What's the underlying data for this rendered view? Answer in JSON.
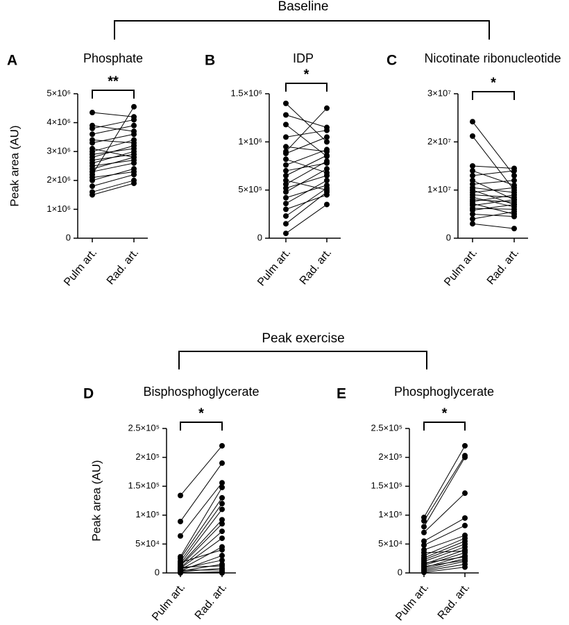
{
  "headers": [
    "Baseline",
    "Peak exercise"
  ],
  "chart_data": [
    {
      "type": "paired",
      "panel": "A",
      "title": "Phosphate",
      "ylabel": "Peak area (AU)",
      "significance": "**",
      "categories": [
        "Pulm art.",
        "Rad. art."
      ],
      "ylim": [
        0,
        5000000.0
      ],
      "yticks": [
        0,
        {
          "value": 1000000.0,
          "label": "1×10⁶"
        },
        {
          "value": 2000000.0,
          "label": "2×10⁶"
        },
        {
          "value": 3000000.0,
          "label": "3×10⁶"
        },
        {
          "value": 4000000.0,
          "label": "4×10⁶"
        },
        {
          "value": 5000000.0,
          "label": "5×10⁶"
        }
      ],
      "pairs": [
        [
          1500000.0,
          1900000.0
        ],
        [
          1600000.0,
          2000000.0
        ],
        [
          1800000.0,
          2200000.0
        ],
        [
          2000000.0,
          2400000.0
        ],
        [
          2100000.0,
          2300000.0
        ],
        [
          2300000.0,
          2600000.0
        ],
        [
          2400000.0,
          2800000.0
        ],
        [
          2500000.0,
          2700000.0
        ],
        [
          2600000.0,
          3000000.0
        ],
        [
          2700000.0,
          2900000.0
        ],
        [
          2800000.0,
          3200000.0
        ],
        [
          2900000.0,
          3100000.0
        ],
        [
          3000000.0,
          3400000.0
        ],
        [
          3100000.0,
          2800000.0
        ],
        [
          3300000.0,
          3600000.0
        ],
        [
          3400000.0,
          3300000.0
        ],
        [
          3600000.0,
          3900000.0
        ],
        [
          3800000.0,
          4100000.0
        ],
        [
          3900000.0,
          3700000.0
        ],
        [
          4350000.0,
          4200000.0
        ],
        [
          2200000.0,
          4550000.0
        ]
      ]
    },
    {
      "type": "paired",
      "panel": "B",
      "title": "IDP",
      "significance": "*",
      "categories": [
        "Pulm art.",
        "Rad. art."
      ],
      "ylim": [
        0,
        1500000.0
      ],
      "yticks": [
        0,
        {
          "value": 500000.0,
          "label": "5×10⁵"
        },
        {
          "value": 1000000.0,
          "label": "1×10⁶"
        },
        {
          "value": 1500000.0,
          "label": "1.5×10⁶"
        }
      ],
      "pairs": [
        [
          50000.0,
          350000.0
        ],
        [
          150000.0,
          480000.0
        ],
        [
          230000.0,
          520000.0
        ],
        [
          300000.0,
          450000.0
        ],
        [
          360000.0,
          600000.0
        ],
        [
          420000.0,
          550000.0
        ],
        [
          480000.0,
          720000.0
        ],
        [
          520000.0,
          650000.0
        ],
        [
          560000.0,
          800000.0
        ],
        [
          600000.0,
          500000.0
        ],
        [
          650000.0,
          860000.0
        ],
        [
          700000.0,
          780000.0
        ],
        [
          760000.0,
          920000.0
        ],
        [
          820000.0,
          680000.0
        ],
        [
          880000.0,
          1050000.0
        ],
        [
          950000.0,
          900000.0
        ],
        [
          1050000.0,
          1120000.0
        ],
        [
          1180000.0,
          850000.0
        ],
        [
          1280000.0,
          1150000.0
        ],
        [
          1400000.0,
          1000000.0
        ],
        [
          900000.0,
          1350000.0
        ]
      ]
    },
    {
      "type": "paired",
      "panel": "C",
      "title": "Nicotinate ribonucleotide",
      "significance": "*",
      "categories": [
        "Pulm art.",
        "Rad. art."
      ],
      "ylim": [
        0,
        30000000.0
      ],
      "yticks": [
        0,
        {
          "value": 10000000.0,
          "label": "1×10⁷"
        },
        {
          "value": 20000000.0,
          "label": "2×10⁷"
        },
        {
          "value": 30000000.0,
          "label": "3×10⁷"
        }
      ],
      "pairs": [
        [
          3000000.0,
          2000000.0
        ],
        [
          4000000.0,
          5500000.0
        ],
        [
          5000000.0,
          4500000.0
        ],
        [
          5800000.0,
          7000000.0
        ],
        [
          6200000.0,
          6000000.0
        ],
        [
          6800000.0,
          8000000.0
        ],
        [
          7200000.0,
          5000000.0
        ],
        [
          7600000.0,
          9000000.0
        ],
        [
          8000000.0,
          7500000.0
        ],
        [
          8500000.0,
          6500000.0
        ],
        [
          9000000.0,
          8500000.0
        ],
        [
          9500000.0,
          10500000.0
        ],
        [
          10000000.0,
          7000000.0
        ],
        [
          10500000.0,
          9500000.0
        ],
        [
          11200000.0,
          12000000.0
        ],
        [
          12000000.0,
          8000000.0
        ],
        [
          13000000.0,
          14000000.0
        ],
        [
          14000000.0,
          11000000.0
        ],
        [
          15000000.0,
          14500000.0
        ],
        [
          21200000.0,
          10000000.0
        ],
        [
          24200000.0,
          13000000.0
        ]
      ]
    },
    {
      "type": "paired",
      "panel": "D",
      "title": "Bisphosphoglycerate",
      "ylabel": "Peak area (AU)",
      "significance": "*",
      "categories": [
        "Pulm art.",
        "Rad. art."
      ],
      "ylim": [
        0,
        250000.0
      ],
      "yticks": [
        0,
        {
          "value": 50000.0,
          "label": "5×10⁴"
        },
        {
          "value": 100000.0,
          "label": "1×10⁵"
        },
        {
          "value": 150000.0,
          "label": "1.5×10⁵"
        },
        {
          "value": 200000.0,
          "label": "2×10⁵"
        },
        {
          "value": 250000.0,
          "label": "2.5×10⁵"
        }
      ],
      "pairs": [
        [
          0,
          2000
        ],
        [
          1000,
          0
        ],
        [
          2000,
          8000
        ],
        [
          3000,
          15000
        ],
        [
          4000,
          30000
        ],
        [
          5000,
          5000
        ],
        [
          6000,
          45000
        ],
        [
          7000,
          22000
        ],
        [
          8000,
          60000
        ],
        [
          9000,
          72000
        ],
        [
          10000,
          12000
        ],
        [
          12000,
          85000
        ],
        [
          14000,
          92000
        ],
        [
          16000,
          110000.0
        ],
        [
          18000,
          40000
        ],
        [
          20000,
          120000.0
        ],
        [
          25000,
          130000.0
        ],
        [
          28000,
          148000.0
        ],
        [
          64000,
          156000.0
        ],
        [
          89000,
          190000.0
        ],
        [
          134000.0,
          220000.0
        ]
      ]
    },
    {
      "type": "paired",
      "panel": "E",
      "title": "Phosphoglycerate",
      "significance": "*",
      "categories": [
        "Pulm art.",
        "Rad. art."
      ],
      "ylim": [
        0,
        250000.0
      ],
      "yticks": [
        0,
        {
          "value": 50000.0,
          "label": "5×10⁴"
        },
        {
          "value": 100000.0,
          "label": "1×10⁵"
        },
        {
          "value": 150000.0,
          "label": "1.5×10⁵"
        },
        {
          "value": 200000.0,
          "label": "2×10⁵"
        },
        {
          "value": 250000.0,
          "label": "2.5×10⁵"
        }
      ],
      "pairs": [
        [
          1000,
          10000
        ],
        [
          3000,
          15000
        ],
        [
          5000,
          20000
        ],
        [
          7000,
          25000
        ],
        [
          9000,
          30000
        ],
        [
          11000,
          22000
        ],
        [
          13000,
          35000
        ],
        [
          15000,
          40000
        ],
        [
          17000,
          28000
        ],
        [
          20000,
          45000
        ],
        [
          23000,
          50000
        ],
        [
          26000,
          55000
        ],
        [
          30000,
          60000
        ],
        [
          35000,
          38000
        ],
        [
          40000,
          65000
        ],
        [
          48000,
          82000
        ],
        [
          55000,
          95000
        ],
        [
          70000,
          138000.0
        ],
        [
          80000,
          200000.0
        ],
        [
          90000,
          203000.0
        ],
        [
          96000,
          220000.0
        ]
      ]
    }
  ]
}
